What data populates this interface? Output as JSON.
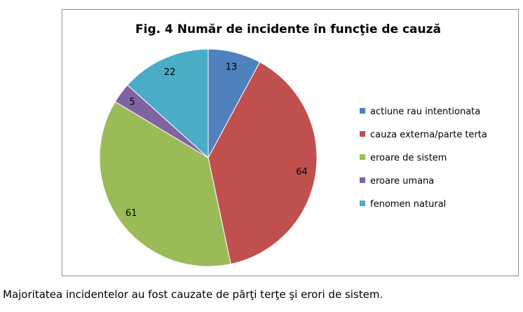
{
  "chart_data": {
    "type": "pie",
    "title": "Fig. 4 Număr de incidente în funcţie de cauză",
    "categories": [
      "actiune rau intentionata",
      "cauza externa/parte terta",
      "eroare de sistem",
      "eroare umana",
      "fenomen natural"
    ],
    "values": [
      13,
      64,
      61,
      5,
      22
    ],
    "colors": [
      "#4f81bd",
      "#c0504d",
      "#9bbb59",
      "#8064a2",
      "#4bacc6"
    ],
    "legend_position": "right"
  },
  "caption": "Majoritatea incidentelor au fost cauzate de părţi terţe şi erori de sistem."
}
